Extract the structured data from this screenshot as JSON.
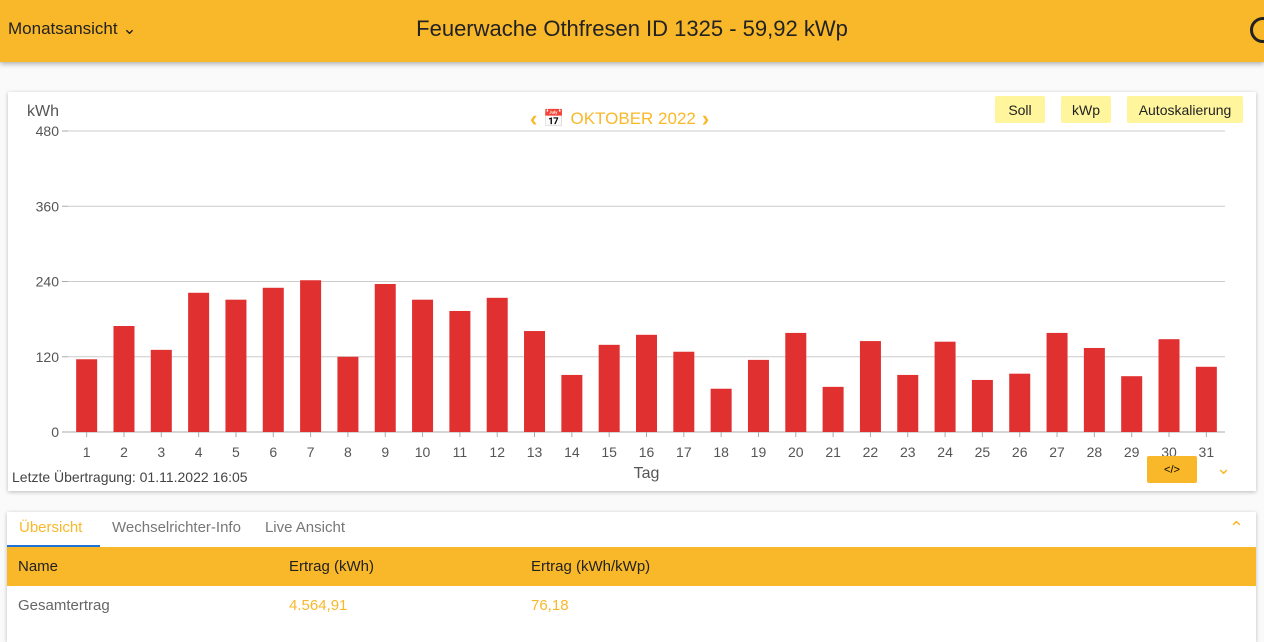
{
  "header": {
    "view_select": "Monatsansicht",
    "title": "Feuerwache Othfresen ID 1325 - 59,92 kWp",
    "user_icon": "account-circle-icon"
  },
  "chart_toolbar": {
    "month": "OKTOBER 2022",
    "buttons": [
      "Soll",
      "kWp",
      "Autoskalierung"
    ]
  },
  "status": {
    "last_transmission": "Letzte Übertragung: 01.11.2022 16:05"
  },
  "colors": {
    "accent": "#f9b829",
    "bar": "#e03030",
    "button": "#fff59d"
  },
  "chart_data": {
    "type": "bar",
    "ylabel": "kWh",
    "xlabel": "Tag",
    "ylim": [
      0,
      480
    ],
    "yticks": [
      0,
      120,
      240,
      360,
      480
    ],
    "grid": true,
    "categories": [
      "1",
      "2",
      "3",
      "4",
      "5",
      "6",
      "7",
      "8",
      "9",
      "10",
      "11",
      "12",
      "13",
      "14",
      "15",
      "16",
      "17",
      "18",
      "19",
      "20",
      "21",
      "22",
      "23",
      "24",
      "25",
      "26",
      "27",
      "28",
      "29",
      "30",
      "31"
    ],
    "values": [
      116,
      169,
      131,
      222,
      211,
      230,
      242,
      120,
      236,
      211,
      193,
      214,
      161,
      91,
      139,
      155,
      128,
      69,
      115,
      158,
      72,
      145,
      91,
      144,
      83,
      93,
      158,
      134,
      89,
      148,
      104
    ]
  },
  "tabs": [
    "Übersicht",
    "Wechselrichter-Info",
    "Live Ansicht"
  ],
  "table": {
    "headers": [
      "Name",
      "Ertrag (kWh)",
      "Ertrag (kWh/kWp)"
    ],
    "rows": [
      [
        "Gesamtertrag",
        "4.564,91",
        "76,18"
      ]
    ]
  }
}
